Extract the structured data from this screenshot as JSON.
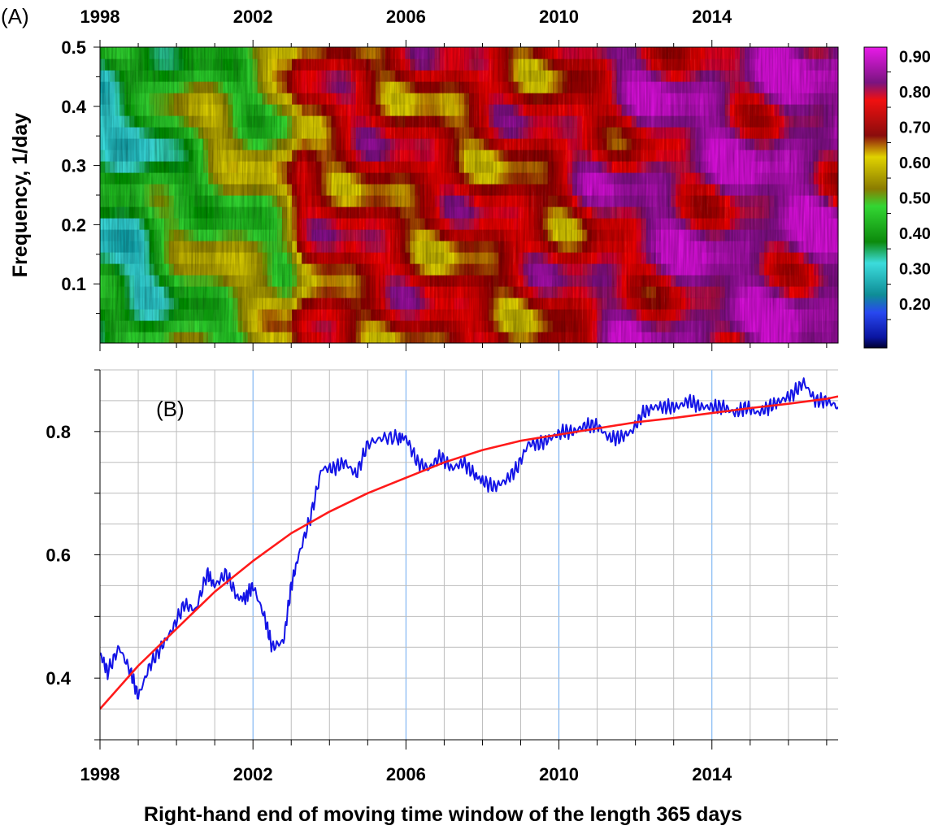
{
  "panel_a_label": "(A)",
  "panel_b_label": "(B)",
  "x_label": "Right-hand end of moving time window of the length 365 days",
  "y_label_a": "Frequency, 1/day",
  "colors": {
    "fit": "#ff1a1a",
    "series": "#1414e6",
    "grid": "#bdbdbd",
    "vgrid_major": "#6aa8f0"
  },
  "chart_data": [
    {
      "type": "heatmap",
      "panel": "A",
      "title": "",
      "xlabel": "",
      "ylabel": "Frequency, 1/day",
      "xlim": [
        1998,
        2017.3
      ],
      "ylim": [
        0,
        0.5
      ],
      "x_ticks": [
        "1998",
        "2002",
        "2006",
        "2010",
        "2014"
      ],
      "x_tick_values": [
        1998,
        2002,
        2006,
        2010,
        2014
      ],
      "y_ticks": [
        "0.1",
        "0.2",
        "0.3",
        "0.4",
        "0.5"
      ],
      "y_tick_values": [
        0.1,
        0.2,
        0.3,
        0.4,
        0.5
      ],
      "colorbar": {
        "ticks": [
          "0.20",
          "0.30",
          "0.40",
          "0.50",
          "0.60",
          "0.70",
          "0.80",
          "0.90"
        ],
        "bands": [
          {
            "from": 0.12,
            "to": 0.25,
            "color": "#1020b8"
          },
          {
            "from": 0.25,
            "to": 0.4,
            "color": "#12b8b8"
          },
          {
            "from": 0.4,
            "to": 0.55,
            "color": "#19b419"
          },
          {
            "from": 0.55,
            "to": 0.7,
            "color": "#c8b400"
          },
          {
            "from": 0.7,
            "to": 0.85,
            "color": "#d01010"
          },
          {
            "from": 0.85,
            "to": 0.97,
            "color": "#9e1fa8"
          }
        ],
        "gradient_stops": [
          {
            "value": 0.12,
            "color": "#000030"
          },
          {
            "value": 0.15,
            "color": "#0a14a0"
          },
          {
            "value": 0.22,
            "color": "#2848f0"
          },
          {
            "value": 0.27,
            "color": "#0e8c96"
          },
          {
            "value": 0.36,
            "color": "#3cdcdc"
          },
          {
            "value": 0.42,
            "color": "#0c8a0c"
          },
          {
            "value": 0.52,
            "color": "#33d633"
          },
          {
            "value": 0.57,
            "color": "#8a7c00"
          },
          {
            "value": 0.66,
            "color": "#e0d200"
          },
          {
            "value": 0.72,
            "color": "#8a0c0c"
          },
          {
            "value": 0.82,
            "color": "#f01010"
          },
          {
            "value": 0.87,
            "color": "#7a1480"
          },
          {
            "value": 0.97,
            "color": "#e81ae8"
          }
        ]
      },
      "coherence_profile": {
        "x": [
          1998.0,
          1999.0,
          2000.0,
          2001.0,
          2002.0,
          2002.9,
          2003.3,
          2004.0,
          2005.0,
          2006.0,
          2007.0,
          2008.0,
          2009.0,
          2010.0,
          2011.0,
          2012.0,
          2013.0,
          2014.0,
          2015.0,
          2016.0,
          2017.3
        ],
        "value": [
          0.4,
          0.4,
          0.5,
          0.55,
          0.55,
          0.6,
          0.74,
          0.76,
          0.77,
          0.76,
          0.75,
          0.76,
          0.76,
          0.77,
          0.82,
          0.85,
          0.87,
          0.88,
          0.88,
          0.9,
          0.89
        ]
      }
    },
    {
      "type": "line",
      "panel": "B",
      "title": "",
      "xlabel": "Right-hand end of moving time window of the length 365 days",
      "ylabel": "",
      "xlim": [
        1998,
        2017.3
      ],
      "ylim": [
        0.3,
        0.9
      ],
      "x_ticks": [
        "1998",
        "2002",
        "2006",
        "2010",
        "2014"
      ],
      "x_tick_values": [
        1998,
        2002,
        2006,
        2010,
        2014
      ],
      "y_ticks": [
        "0.4",
        "0.6",
        "0.8"
      ],
      "y_tick_values": [
        0.4,
        0.6,
        0.8
      ],
      "grid": true,
      "series": [
        {
          "name": "moving-window coherence",
          "color": "#1414e6",
          "x": [
            1998.0,
            1998.2,
            1998.5,
            1998.8,
            1999.0,
            1999.3,
            1999.6,
            1999.9,
            2000.2,
            2000.5,
            2000.8,
            2001.0,
            2001.3,
            2001.6,
            2001.8,
            2002.0,
            2002.3,
            2002.5,
            2002.8,
            2003.0,
            2003.2,
            2003.5,
            2003.8,
            2004.1,
            2004.4,
            2004.7,
            2005.0,
            2005.4,
            2005.8,
            2006.0,
            2006.3,
            2006.6,
            2006.9,
            2007.2,
            2007.5,
            2007.8,
            2008.0,
            2008.3,
            2008.6,
            2008.9,
            2009.2,
            2009.5,
            2009.8,
            2010.1,
            2010.4,
            2010.7,
            2011.0,
            2011.3,
            2011.6,
            2011.9,
            2012.2,
            2012.5,
            2012.8,
            2013.1,
            2013.4,
            2013.7,
            2014.0,
            2014.3,
            2014.6,
            2014.9,
            2015.2,
            2015.5,
            2015.8,
            2016.1,
            2016.4,
            2016.7,
            2017.0,
            2017.3
          ],
          "values": [
            0.44,
            0.41,
            0.45,
            0.41,
            0.37,
            0.42,
            0.45,
            0.48,
            0.52,
            0.51,
            0.57,
            0.55,
            0.57,
            0.53,
            0.53,
            0.55,
            0.5,
            0.45,
            0.46,
            0.55,
            0.6,
            0.66,
            0.74,
            0.74,
            0.75,
            0.73,
            0.78,
            0.79,
            0.79,
            0.79,
            0.75,
            0.74,
            0.76,
            0.74,
            0.75,
            0.73,
            0.72,
            0.71,
            0.72,
            0.74,
            0.78,
            0.78,
            0.79,
            0.8,
            0.8,
            0.81,
            0.81,
            0.79,
            0.79,
            0.8,
            0.83,
            0.84,
            0.84,
            0.84,
            0.85,
            0.84,
            0.84,
            0.84,
            0.83,
            0.84,
            0.83,
            0.84,
            0.85,
            0.86,
            0.88,
            0.85,
            0.85,
            0.84
          ]
        },
        {
          "name": "fitted trend",
          "color": "#ff1a1a",
          "x": [
            1998,
            1999,
            2000,
            2001,
            2002,
            2003,
            2004,
            2005,
            2006,
            2007,
            2008,
            2009,
            2010,
            2011,
            2012,
            2013,
            2014,
            2015,
            2016,
            2017,
            2017.3
          ],
          "values": [
            0.35,
            0.42,
            0.48,
            0.54,
            0.59,
            0.635,
            0.67,
            0.7,
            0.725,
            0.75,
            0.77,
            0.785,
            0.795,
            0.805,
            0.815,
            0.822,
            0.83,
            0.838,
            0.845,
            0.853,
            0.857
          ]
        }
      ]
    }
  ]
}
